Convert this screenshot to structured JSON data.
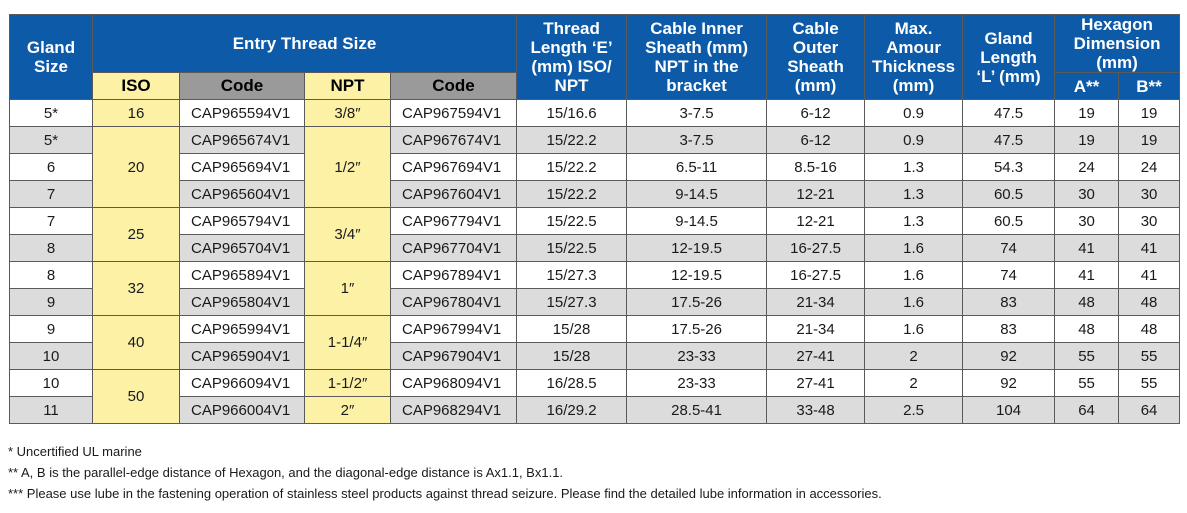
{
  "headers": {
    "gland_size": [
      "Gland",
      "Size"
    ],
    "entry_thread_size": "Entry Thread Size",
    "thread_length": [
      "Thread",
      "Length ‘E’",
      "(mm) ISO/",
      "NPT"
    ],
    "cable_inner": [
      "Cable Inner",
      "Sheath (mm)",
      "NPT in the",
      "bracket"
    ],
    "cable_outer": [
      "Cable",
      "Outer",
      "Sheath",
      "(mm)"
    ],
    "max_amour": [
      "Max.",
      "Amour",
      "Thickness",
      "(mm)"
    ],
    "gland_length": [
      "Gland",
      "Length",
      "‘L’ (mm)"
    ],
    "hexagon": [
      "Hexagon",
      "Dimension",
      "(mm)"
    ],
    "iso": "ISO",
    "code_iso": "Code",
    "npt": "NPT",
    "code_npt": "Code",
    "hex_a": "A**",
    "hex_b": "B**"
  },
  "rows": [
    {
      "gland": "5*",
      "iso": "16",
      "iso_span": 1,
      "iso_code": "CAP965594V1",
      "npt": "3/8″",
      "npt_span": 1,
      "npt_code": "CAP967594V1",
      "thread": "15/16.6",
      "inner": "3-7.5",
      "outer": "6-12",
      "amour": "0.9",
      "length": "47.5",
      "a": "19",
      "b": "19"
    },
    {
      "gland": "5*",
      "iso": "20",
      "iso_span": 3,
      "iso_code": "CAP965674V1",
      "npt": "1/2″",
      "npt_span": 3,
      "npt_code": "CAP967674V1",
      "thread": "15/22.2",
      "inner": "3-7.5",
      "outer": "6-12",
      "amour": "0.9",
      "length": "47.5",
      "a": "19",
      "b": "19"
    },
    {
      "gland": "6",
      "iso": null,
      "iso_span": 0,
      "iso_code": "CAP965694V1",
      "npt": null,
      "npt_span": 0,
      "npt_code": "CAP967694V1",
      "thread": "15/22.2",
      "inner": "6.5-11",
      "outer": "8.5-16",
      "amour": "1.3",
      "length": "54.3",
      "a": "24",
      "b": "24"
    },
    {
      "gland": "7",
      "iso": null,
      "iso_span": 0,
      "iso_code": "CAP965604V1",
      "npt": null,
      "npt_span": 0,
      "npt_code": "CAP967604V1",
      "thread": "15/22.2",
      "inner": "9-14.5",
      "outer": "12-21",
      "amour": "1.3",
      "length": "60.5",
      "a": "30",
      "b": "30"
    },
    {
      "gland": "7",
      "iso": "25",
      "iso_span": 2,
      "iso_code": "CAP965794V1",
      "npt": "3/4″",
      "npt_span": 2,
      "npt_code": "CAP967794V1",
      "thread": "15/22.5",
      "inner": "9-14.5",
      "outer": "12-21",
      "amour": "1.3",
      "length": "60.5",
      "a": "30",
      "b": "30"
    },
    {
      "gland": "8",
      "iso": null,
      "iso_span": 0,
      "iso_code": "CAP965704V1",
      "npt": null,
      "npt_span": 0,
      "npt_code": "CAP967704V1",
      "thread": "15/22.5",
      "inner": "12-19.5",
      "outer": "16-27.5",
      "amour": "1.6",
      "length": "74",
      "a": "41",
      "b": "41"
    },
    {
      "gland": "8",
      "iso": "32",
      "iso_span": 2,
      "iso_code": "CAP965894V1",
      "npt": "1″",
      "npt_span": 2,
      "npt_code": "CAP967894V1",
      "thread": "15/27.3",
      "inner": "12-19.5",
      "outer": "16-27.5",
      "amour": "1.6",
      "length": "74",
      "a": "41",
      "b": "41"
    },
    {
      "gland": "9",
      "iso": null,
      "iso_span": 0,
      "iso_code": "CAP965804V1",
      "npt": null,
      "npt_span": 0,
      "npt_code": "CAP967804V1",
      "thread": "15/27.3",
      "inner": "17.5-26",
      "outer": "21-34",
      "amour": "1.6",
      "length": "83",
      "a": "48",
      "b": "48"
    },
    {
      "gland": "9",
      "iso": "40",
      "iso_span": 2,
      "iso_code": "CAP965994V1",
      "npt": "1-1/4″",
      "npt_span": 2,
      "npt_code": "CAP967994V1",
      "thread": "15/28",
      "inner": "17.5-26",
      "outer": "21-34",
      "amour": "1.6",
      "length": "83",
      "a": "48",
      "b": "48"
    },
    {
      "gland": "10",
      "iso": null,
      "iso_span": 0,
      "iso_code": "CAP965904V1",
      "npt": null,
      "npt_span": 0,
      "npt_code": "CAP967904V1",
      "thread": "15/28",
      "inner": "23-33",
      "outer": "27-41",
      "amour": "2",
      "length": "92",
      "a": "55",
      "b": "55"
    },
    {
      "gland": "10",
      "iso": "50",
      "iso_span": 2,
      "iso_code": "CAP966094V1",
      "npt": "1-1/2″",
      "npt_span": 1,
      "npt_code": "CAP968094V1",
      "thread": "16/28.5",
      "inner": "23-33",
      "outer": "27-41",
      "amour": "2",
      "length": "92",
      "a": "55",
      "b": "55"
    },
    {
      "gland": "11",
      "iso": null,
      "iso_span": 0,
      "iso_code": "CAP966004V1",
      "npt": "2″",
      "npt_span": 1,
      "npt_code": "CAP968294V1",
      "thread": "16/29.2",
      "inner": "28.5-41",
      "outer": "33-48",
      "amour": "2.5",
      "length": "104",
      "a": "64",
      "b": "64"
    }
  ],
  "notes": [
    "* Uncertified UL marine",
    "** A, B is the parallel-edge distance of Hexagon, and the diagonal-edge distance is Ax1.1, Bx1.1.",
    "*** Please use lube in the fastening operation of stainless steel products against thread seizure. Please find the detailed lube information in accessories."
  ],
  "colors": {
    "header_blue": "#0d5aa8",
    "header_yellow": "#fdf1a6",
    "header_gray": "#9a9a9a",
    "row_gray": "#dcdcdc"
  }
}
